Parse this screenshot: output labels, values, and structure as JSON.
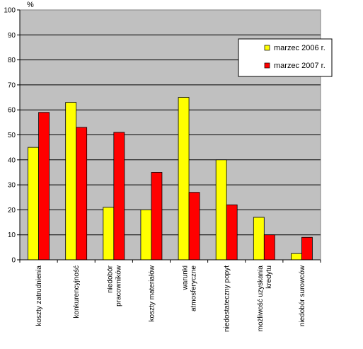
{
  "chart_data": {
    "type": "bar",
    "unit_label": "%",
    "categories": [
      [
        "koszty zatrudnienia"
      ],
      [
        "konkurencyjność"
      ],
      [
        "niedobór",
        "pracowników"
      ],
      [
        "koszty materiałów"
      ],
      [
        "warunki",
        "atmosferyczne"
      ],
      [
        "niedostateczny popyt"
      ],
      [
        "możliwość uzyskania",
        "kredytu"
      ],
      [
        "niedobór surowców"
      ]
    ],
    "series": [
      {
        "name": "marzec 2006 r.",
        "color": "#ffff00",
        "values": [
          45,
          63,
          21,
          20,
          65,
          40,
          17,
          2.5
        ]
      },
      {
        "name": "marzec 2007 r.",
        "color": "#ff0000",
        "values": [
          59,
          53,
          51,
          35,
          27,
          22,
          10,
          9
        ]
      }
    ],
    "ylim": [
      0,
      100
    ],
    "yticks": [
      0,
      10,
      20,
      30,
      40,
      50,
      60,
      70,
      80,
      90,
      100
    ],
    "grid": true,
    "plot_background": "#c0c0c0",
    "legend_position": "top-right"
  }
}
